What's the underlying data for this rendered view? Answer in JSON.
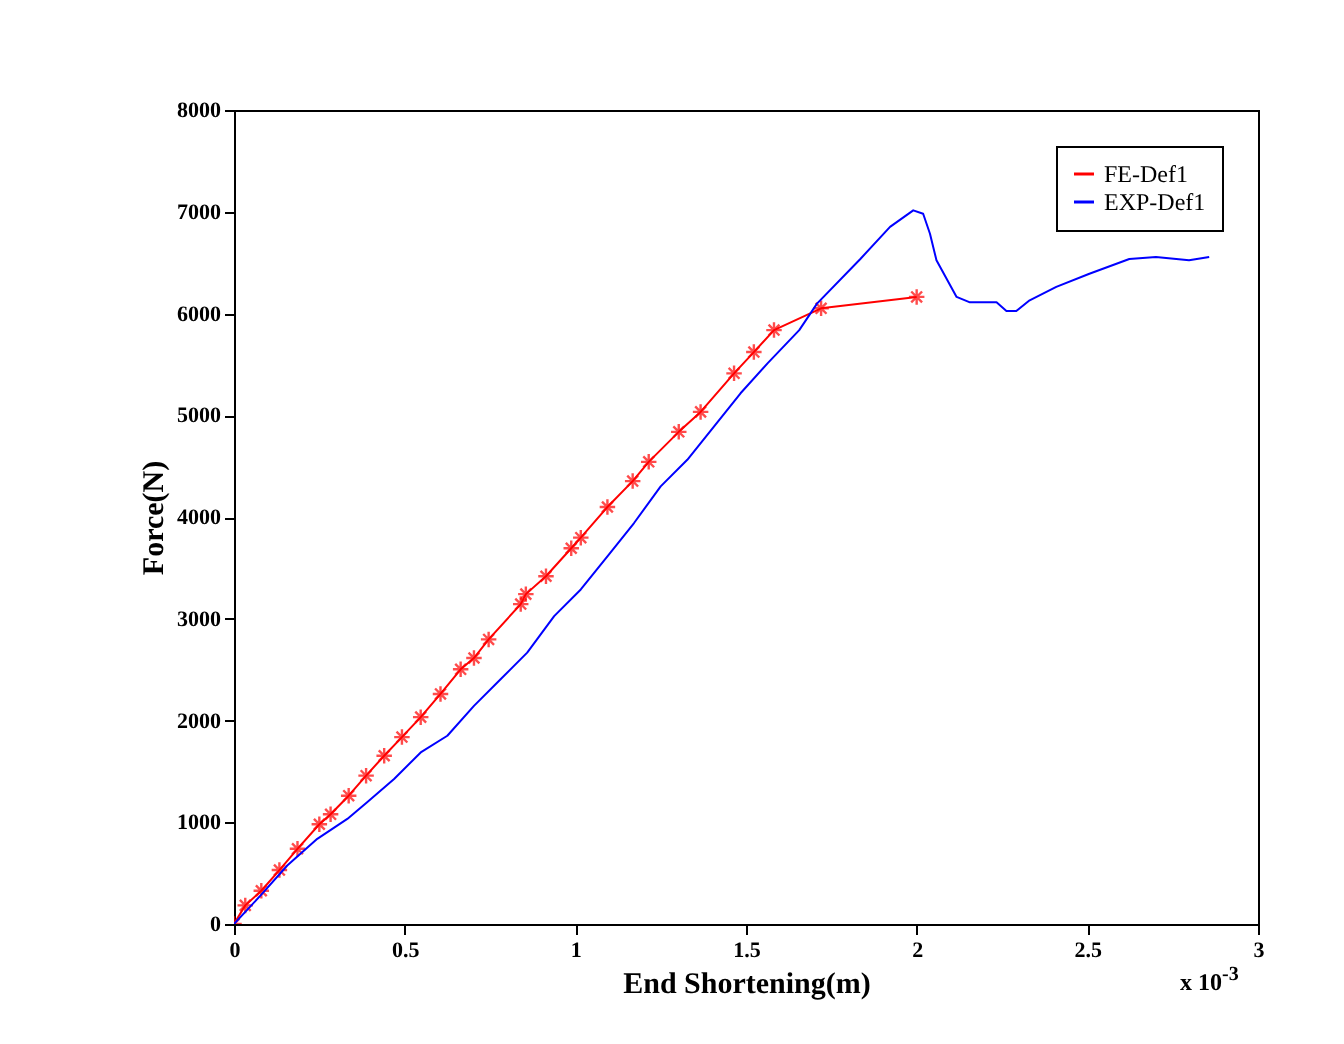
{
  "chart_data": {
    "type": "line",
    "xlabel": "End Shortening(m)",
    "ylabel": "Force(N)",
    "annotations": [
      "x 10$^{-3}$"
    ],
    "xlim": [
      0,
      3
    ],
    "xticks": [
      0,
      0.5,
      1,
      1.5,
      2,
      2.5,
      3
    ],
    "ylim": [
      0,
      8000
    ],
    "yticks": [
      0,
      1000,
      2000,
      3000,
      4000,
      5000,
      6000,
      7000,
      8000
    ],
    "grid": false,
    "legend": "top right",
    "series": [
      {
        "name": "FE-Def1",
        "color": "#ff0000",
        "marker": "cross",
        "x": [
          0,
          0.033,
          0.08,
          0.133,
          0.186,
          0.25,
          0.283,
          0.336,
          0.387,
          0.44,
          0.492,
          0.547,
          0.605,
          0.664,
          0.703,
          0.746,
          0.84,
          0.855,
          0.914,
          0.988,
          1.016,
          1.094,
          1.168,
          1.215,
          1.303,
          1.367,
          1.465,
          1.523,
          1.582,
          1.72,
          2.0
        ],
        "values": [
          0,
          183,
          327,
          530,
          739,
          980,
          1078,
          1261,
          1458,
          1654,
          1837,
          2033,
          2261,
          2503,
          2614,
          2797,
          3144,
          3242,
          3418,
          3693,
          3797,
          4098,
          4353,
          4542,
          4837,
          5033,
          5412,
          5621,
          5837,
          6051,
          6163
        ]
      },
      {
        "name": "EXP-Def1",
        "color": "#0000ff",
        "marker": "none",
        "x": [
          0,
          0.078,
          0.156,
          0.244,
          0.332,
          0.39,
          0.469,
          0.547,
          0.625,
          0.703,
          0.781,
          0.859,
          0.938,
          1.016,
          1.094,
          1.172,
          1.25,
          1.328,
          1.406,
          1.484,
          1.563,
          1.656,
          1.708,
          1.835,
          1.922,
          1.99,
          2.019,
          2.039,
          2.058,
          2.117,
          2.156,
          2.234,
          2.263,
          2.292,
          2.331,
          2.409,
          2.506,
          2.623,
          2.701,
          2.798,
          2.857
        ],
        "values": [
          0,
          281,
          575,
          837,
          1033,
          1196,
          1425,
          1686,
          1850,
          2144,
          2405,
          2667,
          3026,
          3288,
          3614,
          3941,
          4301,
          4562,
          4889,
          5216,
          5510,
          5837,
          6097,
          6536,
          6851,
          7014,
          6980,
          6784,
          6523,
          6163,
          6110,
          6110,
          6025,
          6025,
          6130,
          6261,
          6391,
          6536,
          6556,
          6523,
          6556
        ]
      }
    ]
  }
}
